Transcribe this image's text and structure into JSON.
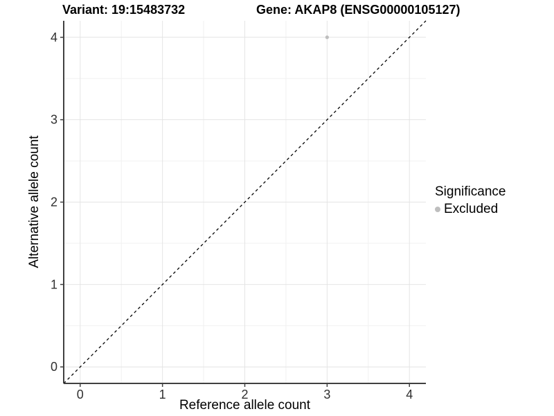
{
  "header": {
    "title_left": "Variant: 19:15483732",
    "title_right": "Gene: AKAP8 (ENSG00000105127)"
  },
  "chart_data": {
    "type": "scatter",
    "title_left": "Variant: 19:15483732",
    "title_right": "Gene: AKAP8 (ENSG00000105127)",
    "xlabel": "Reference allele count",
    "ylabel": "Alternative allele count",
    "xticks": [
      0,
      1,
      2,
      3,
      4
    ],
    "yticks": [
      0,
      1,
      2,
      3,
      4
    ],
    "xlim": [
      -0.2,
      4.2
    ],
    "ylim": [
      -0.2,
      4.2
    ],
    "grid": "major+minor",
    "points": [
      {
        "x": 3,
        "y": 4,
        "series": "Excluded"
      }
    ],
    "reference_line": {
      "type": "identity",
      "slope": 1,
      "intercept": 0,
      "style": "dashed",
      "color": "#000000"
    },
    "legend": {
      "title": "Significance",
      "position": "right",
      "items": [
        {
          "label": "Excluded",
          "color": "#bebebe"
        }
      ]
    },
    "colors": {
      "point": "#bebebe",
      "grid_major": "#e4e4e4",
      "grid_minor": "#f1f1f1",
      "axis_line": "#404040",
      "tick_text": "#303030"
    }
  }
}
